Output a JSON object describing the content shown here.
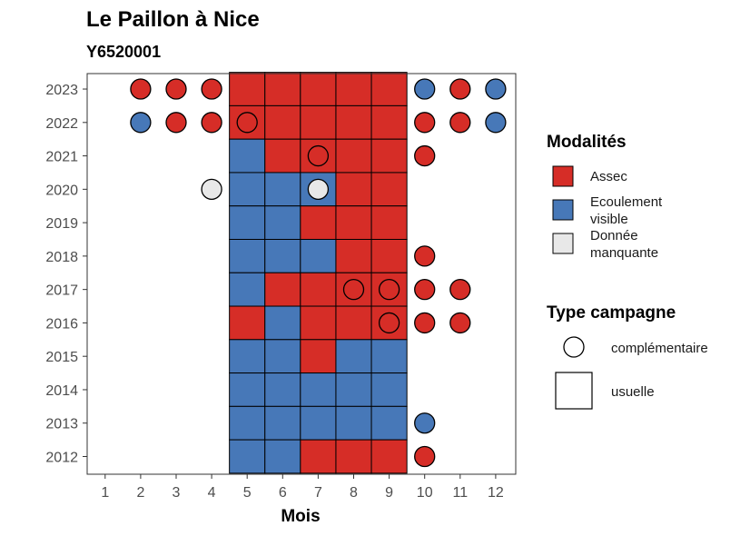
{
  "chart_data": {
    "type": "heatmap",
    "title": "Le Paillon à Nice",
    "subtitle": "Y6520001",
    "xlabel": "Mois",
    "ylabel": "",
    "x_ticks": [
      1,
      2,
      3,
      4,
      5,
      6,
      7,
      8,
      9,
      10,
      11,
      12
    ],
    "y_ticks": [
      2012,
      2013,
      2014,
      2015,
      2016,
      2017,
      2018,
      2019,
      2020,
      2021,
      2022,
      2023
    ],
    "colors": {
      "A": "#d62d27",
      "E": "#4778b8",
      "M": "#e8e8e8"
    },
    "usual_grid": {
      "months": [
        5,
        6,
        7,
        8,
        9
      ],
      "rows": [
        {
          "year": 2023,
          "values": [
            "A",
            "A",
            "A",
            "A",
            "A"
          ]
        },
        {
          "year": 2022,
          "values": [
            "A",
            "A",
            "A",
            "A",
            "A"
          ]
        },
        {
          "year": 2021,
          "values": [
            "E",
            "A",
            "A",
            "A",
            "A"
          ]
        },
        {
          "year": 2020,
          "values": [
            "E",
            "E",
            "E",
            "A",
            "A"
          ]
        },
        {
          "year": 2019,
          "values": [
            "E",
            "E",
            "A",
            "A",
            "A"
          ]
        },
        {
          "year": 2018,
          "values": [
            "E",
            "E",
            "E",
            "A",
            "A"
          ]
        },
        {
          "year": 2017,
          "values": [
            "E",
            "A",
            "A",
            "A",
            "A"
          ]
        },
        {
          "year": 2016,
          "values": [
            "A",
            "E",
            "A",
            "A",
            "A"
          ]
        },
        {
          "year": 2015,
          "values": [
            "E",
            "E",
            "A",
            "E",
            "E"
          ]
        },
        {
          "year": 2014,
          "values": [
            "E",
            "E",
            "E",
            "E",
            "E"
          ]
        },
        {
          "year": 2013,
          "values": [
            "E",
            "E",
            "E",
            "E",
            "E"
          ]
        },
        {
          "year": 2012,
          "values": [
            "E",
            "E",
            "A",
            "A",
            "A"
          ]
        }
      ]
    },
    "complementary_points": [
      {
        "year": 2023,
        "month": 2,
        "v": "A"
      },
      {
        "year": 2023,
        "month": 3,
        "v": "A"
      },
      {
        "year": 2023,
        "month": 4,
        "v": "A"
      },
      {
        "year": 2023,
        "month": 10,
        "v": "E"
      },
      {
        "year": 2023,
        "month": 11,
        "v": "A"
      },
      {
        "year": 2023,
        "month": 12,
        "v": "E"
      },
      {
        "year": 2022,
        "month": 2,
        "v": "E"
      },
      {
        "year": 2022,
        "month": 3,
        "v": "A"
      },
      {
        "year": 2022,
        "month": 4,
        "v": "A"
      },
      {
        "year": 2022,
        "month": 5,
        "v": "A"
      },
      {
        "year": 2022,
        "month": 10,
        "v": "A"
      },
      {
        "year": 2022,
        "month": 11,
        "v": "A"
      },
      {
        "year": 2022,
        "month": 12,
        "v": "E"
      },
      {
        "year": 2021,
        "month": 7,
        "v": "A"
      },
      {
        "year": 2021,
        "month": 10,
        "v": "A"
      },
      {
        "year": 2020,
        "month": 4,
        "v": "M"
      },
      {
        "year": 2020,
        "month": 7,
        "v": "M"
      },
      {
        "year": 2018,
        "month": 10,
        "v": "A"
      },
      {
        "year": 2017,
        "month": 8,
        "v": "A"
      },
      {
        "year": 2017,
        "month": 9,
        "v": "A"
      },
      {
        "year": 2017,
        "month": 10,
        "v": "A"
      },
      {
        "year": 2017,
        "month": 11,
        "v": "A"
      },
      {
        "year": 2016,
        "month": 9,
        "v": "A"
      },
      {
        "year": 2016,
        "month": 10,
        "v": "A"
      },
      {
        "year": 2016,
        "month": 11,
        "v": "A"
      },
      {
        "year": 2013,
        "month": 10,
        "v": "E"
      },
      {
        "year": 2012,
        "month": 10,
        "v": "A"
      }
    ],
    "legend": {
      "modalites_title": "Modalités",
      "modalites": [
        {
          "key": "A",
          "lines": [
            "Assec"
          ]
        },
        {
          "key": "E",
          "lines": [
            "Ecoulement",
            "visible"
          ]
        },
        {
          "key": "M",
          "lines": [
            "Donnée",
            "manquante"
          ]
        }
      ],
      "campagne_title": "Type campagne",
      "campagne": [
        {
          "shape": "circle",
          "label": "complémentaire"
        },
        {
          "shape": "square",
          "label": "usuelle"
        }
      ]
    }
  }
}
